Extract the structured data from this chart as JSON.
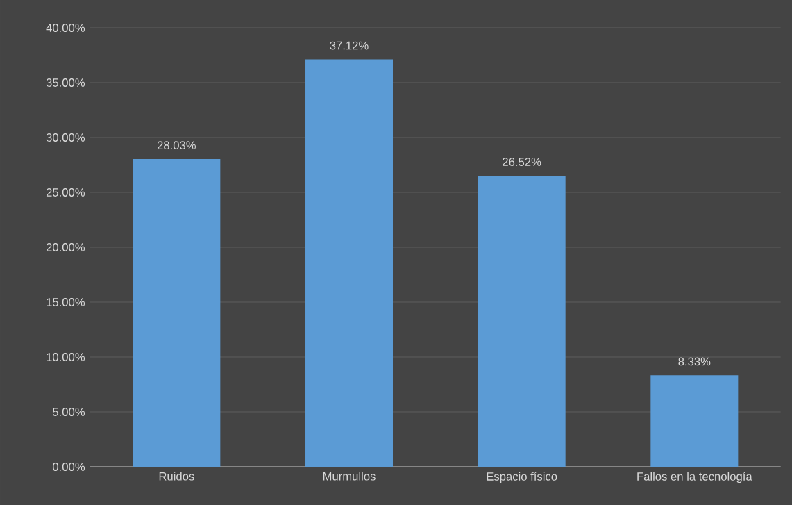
{
  "chart_data": {
    "type": "bar",
    "categories": [
      "Ruidos",
      "Murmullos",
      "Espacio físico",
      "Fallos en la tecnología"
    ],
    "values": [
      28.03,
      37.12,
      26.52,
      8.33
    ],
    "value_labels": [
      "28.03%",
      "37.12%",
      "26.52%",
      "8.33%"
    ],
    "color": "#5b9bd5",
    "ylim": [
      0,
      40
    ],
    "yticks": [
      {
        "value": 0,
        "label": "0.00%"
      },
      {
        "value": 5,
        "label": "5.00%"
      },
      {
        "value": 10,
        "label": "10.00%"
      },
      {
        "value": 15,
        "label": "15.00%"
      },
      {
        "value": 20,
        "label": "20.00%"
      },
      {
        "value": 25,
        "label": "25.00%"
      },
      {
        "value": 30,
        "label": "30.00%"
      },
      {
        "value": 35,
        "label": "35.00%"
      },
      {
        "value": 40,
        "label": "40.00%"
      }
    ],
    "grid": "y"
  }
}
